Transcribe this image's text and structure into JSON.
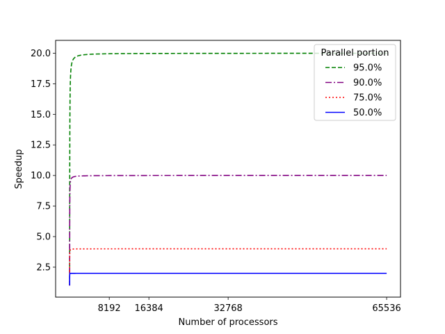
{
  "chart_data": {
    "type": "line",
    "title": "",
    "xlabel": "Number of processors",
    "ylabel": "Speedup",
    "xlim": [
      -2900,
      68400
    ],
    "ylim": [
      0.05,
      21.05
    ],
    "xticks": [
      8192,
      16384,
      32768,
      65536
    ],
    "xtick_labels": [
      "8192",
      "16384",
      "32768",
      "65536"
    ],
    "yticks": [
      2.5,
      5.0,
      7.5,
      10.0,
      12.5,
      15.0,
      17.5,
      20.0
    ],
    "ytick_labels": [
      "2.5",
      "5.0",
      "7.5",
      "10.0",
      "12.5",
      "15.0",
      "17.5",
      "20.0"
    ],
    "grid": false,
    "legend": {
      "title": "Parallel portion",
      "placement": "top-right"
    },
    "series": [
      {
        "name": "95.0%",
        "parallel_fraction": 0.95,
        "color": "#008000",
        "dash": "6,3"
      },
      {
        "name": "90.0%",
        "parallel_fraction": 0.9,
        "color": "#800080",
        "dash": "9,3,2,3"
      },
      {
        "name": "75.0%",
        "parallel_fraction": 0.75,
        "color": "#ff0000",
        "dash": "2,3"
      },
      {
        "name": "50.0%",
        "parallel_fraction": 0.5,
        "color": "#0000ff",
        "dash": ""
      }
    ],
    "x_range": [
      1,
      65536
    ]
  }
}
